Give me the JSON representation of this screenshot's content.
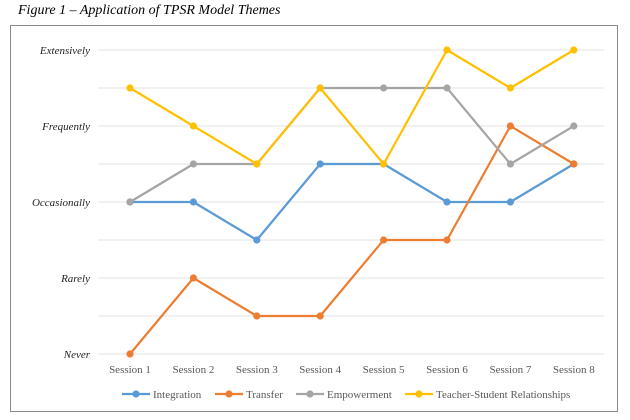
{
  "title": "Figure 1 – Application of TPSR Model Themes",
  "chart_data": {
    "type": "line",
    "title": "Figure 1 – Application of TPSR Model Themes",
    "categories": [
      "Session 1",
      "Session 2",
      "Session 3",
      "Session 4",
      "Session 5",
      "Session 6",
      "Session 7",
      "Session 8"
    ],
    "y_tick_labels": [
      "Never",
      "Rarely",
      "Occasionally",
      "Frequently",
      "Extensively"
    ],
    "y_tick_values": [
      0,
      1,
      2,
      3,
      4
    ],
    "ylim": [
      0,
      4
    ],
    "grid": true,
    "legend_placement": "bottom",
    "series": [
      {
        "name": "Integration",
        "color": "#5b9bd5",
        "values": [
          2,
          2,
          1.5,
          2.5,
          2.5,
          2,
          2,
          2.5
        ]
      },
      {
        "name": "Transfer",
        "color": "#ed7d31",
        "values": [
          0,
          1,
          0.5,
          0.5,
          1.5,
          1.5,
          3,
          2.5
        ]
      },
      {
        "name": "Empowerment",
        "color": "#a5a5a5",
        "values": [
          2,
          2.5,
          2.5,
          3.5,
          3.5,
          3.5,
          2.5,
          3
        ]
      },
      {
        "name": "Teacher-Student Relationships",
        "color": "#ffc000",
        "values": [
          3.5,
          3,
          2.5,
          3.5,
          2.5,
          4,
          3.5,
          4
        ]
      }
    ]
  }
}
